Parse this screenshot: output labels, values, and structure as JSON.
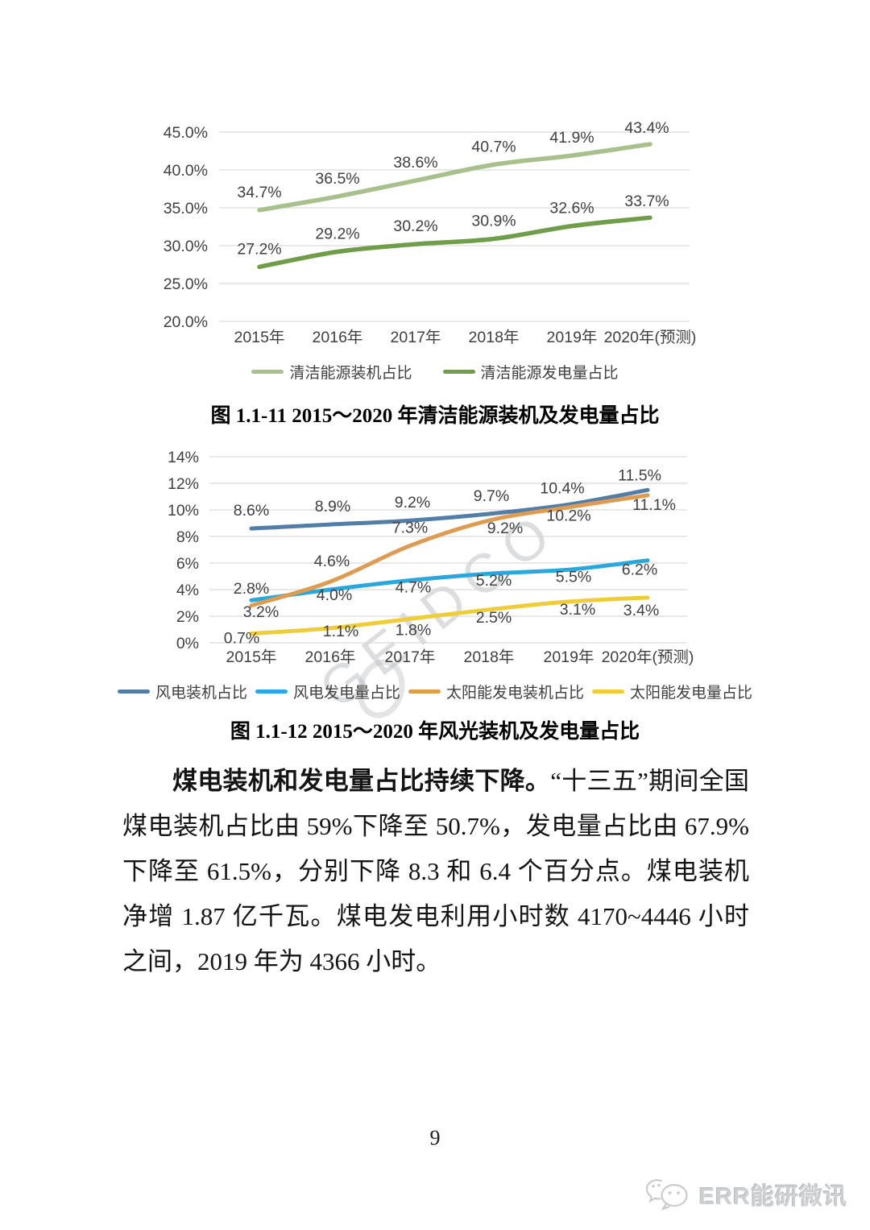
{
  "page": {
    "number": "9"
  },
  "watermark": {
    "text": "GEIDCO"
  },
  "footer": {
    "brand": "ERR能研微讯"
  },
  "paragraph": {
    "bold": "煤电装机和发电量占比持续下降。",
    "regular": "“十三五”期间全国煤电装机占比由 59%下降至 50.7%，发电量占比由 67.9%下降至 61.5%，分别下降 8.3 和 6.4 个百分点。煤电装机净增 1.87 亿千瓦。煤电发电利用小时数 4170~4446 小时之间，2019 年为 4366 小时。"
  },
  "chart_data": [
    {
      "id": "clean-energy",
      "type": "line",
      "caption": "图 1.1-11 2015～2020 年清洁能源装机及发电量占比",
      "categories": [
        "2015年",
        "2016年",
        "2017年",
        "2018年",
        "2019年",
        "2020年(预测)"
      ],
      "ylim": [
        20,
        45
      ],
      "grid": true,
      "legend_position": "bottom",
      "y_ticks": [
        {
          "label": "45.0%",
          "value": 45
        },
        {
          "label": "40.0%",
          "value": 40
        },
        {
          "label": "35.0%",
          "value": 35
        },
        {
          "label": "30.0%",
          "value": 30
        },
        {
          "label": "25.0%",
          "value": 25
        },
        {
          "label": "20.0%",
          "value": 20
        }
      ],
      "series": [
        {
          "name": "清洁能源装机占比",
          "color": "#a8c08b",
          "values": [
            34.7,
            36.5,
            38.6,
            40.7,
            41.9,
            43.4
          ],
          "labels": [
            "34.7%",
            "36.5%",
            "38.6%",
            "40.7%",
            "41.9%",
            "43.4%"
          ],
          "label_dx": [
            0,
            0,
            0,
            0,
            0,
            -4
          ],
          "label_dy": [
            -16,
            -16,
            -16,
            -16,
            -16,
            -14
          ]
        },
        {
          "name": "清洁能源发电量占比",
          "color": "#6f9d49",
          "values": [
            27.2,
            29.2,
            30.2,
            30.9,
            32.6,
            33.7
          ],
          "labels": [
            "27.2%",
            "29.2%",
            "30.2%",
            "30.9%",
            "32.6%",
            "33.7%"
          ],
          "label_dx": [
            0,
            0,
            0,
            0,
            0,
            -4
          ],
          "label_dy": [
            -16,
            -16,
            -16,
            -16,
            -16,
            -14
          ]
        }
      ]
    },
    {
      "id": "wind-solar",
      "type": "line",
      "caption": "图 1.1-12 2015～2020 年风光装机及发电量占比",
      "categories": [
        "2015年",
        "2016年",
        "2017年",
        "2018年",
        "2019年",
        "2020年(预测)"
      ],
      "ylim": [
        0,
        14
      ],
      "grid": true,
      "legend_position": "bottom",
      "y_ticks": [
        {
          "label": "14%",
          "value": 14
        },
        {
          "label": "12%",
          "value": 12
        },
        {
          "label": "10%",
          "value": 10
        },
        {
          "label": "8%",
          "value": 8
        },
        {
          "label": "6%",
          "value": 6
        },
        {
          "label": "4%",
          "value": 4
        },
        {
          "label": "2%",
          "value": 2
        },
        {
          "label": "0%",
          "value": 0
        }
      ],
      "series": [
        {
          "name": "风电装机占比",
          "color": "#517da6",
          "values": [
            8.6,
            8.9,
            9.2,
            9.7,
            10.4,
            11.5
          ],
          "labels": [
            "8.6%",
            "8.9%",
            "9.2%",
            "9.7%",
            "10.4%",
            "11.5%"
          ],
          "label_dx": [
            0,
            3,
            3,
            3,
            -8,
            -10
          ],
          "label_dy": [
            -16,
            -16,
            -16,
            -16,
            -14,
            -12
          ]
        },
        {
          "name": "风电发电量占比",
          "color": "#2aa7db",
          "values": [
            3.2,
            4.0,
            4.7,
            5.2,
            5.5,
            6.2
          ],
          "labels": [
            "3.2%",
            "4.0%",
            "4.7%",
            "5.2%",
            "5.5%",
            "6.2%"
          ],
          "label_dx": [
            12,
            5,
            4,
            6,
            6,
            -10
          ],
          "label_dy": [
            21,
            13,
            15,
            15,
            15,
            18
          ]
        },
        {
          "name": "太阳能发电装机占比",
          "color": "#de9b52",
          "values": [
            2.8,
            4.6,
            7.3,
            9.2,
            10.2,
            11.1
          ],
          "labels": [
            "2.8%",
            "4.6%",
            "7.3%",
            "9.2%",
            "10.2%",
            "11.1%"
          ],
          "label_dx": [
            0,
            2,
            0,
            20,
            0,
            8
          ],
          "label_dy": [
            -15,
            -19,
            -16,
            16,
            17,
            18
          ]
        },
        {
          "name": "太阳能发电量占比",
          "color": "#eecd39",
          "values": [
            0.7,
            1.1,
            1.8,
            2.5,
            3.1,
            3.4
          ],
          "labels": [
            "0.7%",
            "1.1%",
            "1.8%",
            "2.5%",
            "3.1%",
            "3.4%"
          ],
          "label_dx": [
            -12,
            13,
            4,
            6,
            11,
            -8
          ],
          "label_dy": [
            12,
            10,
            20,
            16,
            16,
            22
          ]
        }
      ]
    }
  ]
}
